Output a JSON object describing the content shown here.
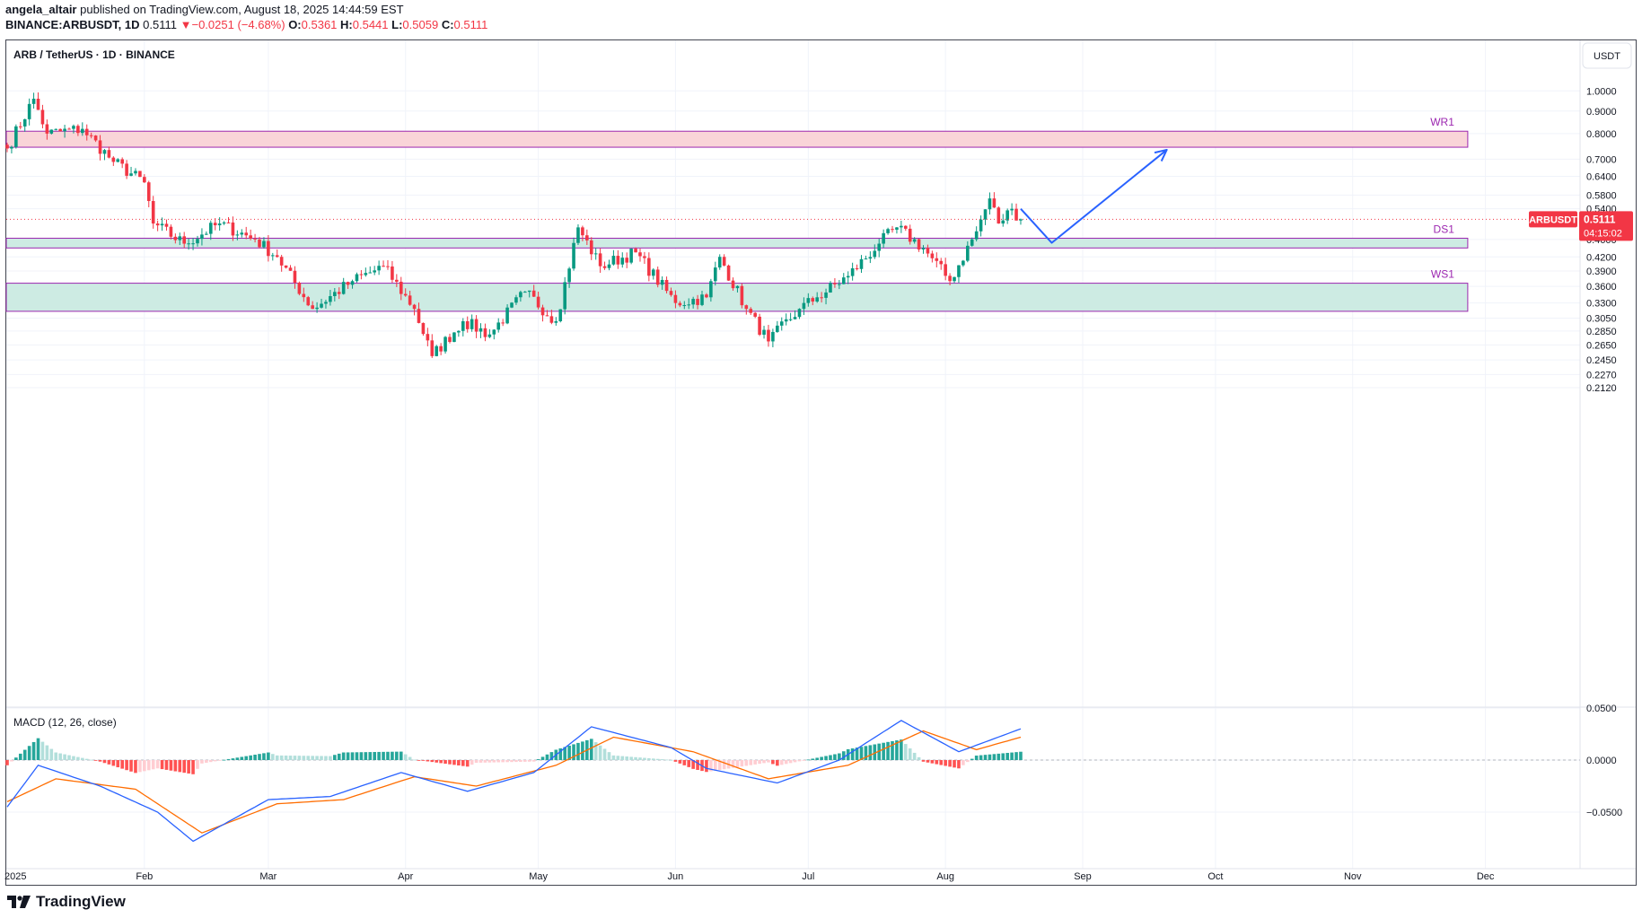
{
  "header": {
    "user": "angela_altair",
    "published_text": "published on TradingView.com, August 18, 2025 14:44:59 EST",
    "symbol": "BINANCE:ARBUSDT, 1D",
    "last": "0.5111",
    "change_arrow": "▼",
    "change": "−0.0251 (−4.68%)",
    "o_label": "O:",
    "o": "0.5361",
    "h_label": "H:",
    "h": "0.5441",
    "l_label": "L:",
    "l": "0.5059",
    "c_label": "C:",
    "c": "0.5111"
  },
  "chart_title": "ARB / TetherUS · 1D · BINANCE",
  "currency_button": "USDT",
  "price_tag": {
    "symbol": "ARBUSDT",
    "price": "0.5111",
    "countdown": "04:15:02"
  },
  "macd_label": "MACD (12, 26, close)",
  "brand": "TradingView",
  "colors": {
    "up": "#089981",
    "down": "#f23645",
    "resistance_fill": "#f9d4d8",
    "support_fill": "#cdebe3",
    "zone_border": "#9c27b0",
    "arrow": "#2962ff",
    "macd_line": "#2962ff",
    "signal_line": "#ff6d00"
  },
  "chart_data": [
    {
      "type": "candlestick",
      "title": "ARB / TetherUS · 1D · BINANCE",
      "y_scale": "log",
      "y_ticks": [
        "1.0000",
        "0.9000",
        "0.8000",
        "0.7000",
        "0.6400",
        "0.5800",
        "0.5400",
        "0.4600",
        "0.4200",
        "0.3900",
        "0.3600",
        "0.3300",
        "0.3050",
        "0.2850",
        "0.2650",
        "0.2450",
        "0.2270",
        "0.2120"
      ],
      "x_ticks": [
        "2025",
        "Feb",
        "Mar",
        "Apr",
        "May",
        "Jun",
        "Jul",
        "Aug",
        "Sep",
        "Oct",
        "Nov",
        "Dec"
      ],
      "price_anchors": [
        {
          "date": "2025-01-01",
          "close": 0.74
        },
        {
          "date": "2025-01-07",
          "close": 0.96
        },
        {
          "date": "2025-01-10",
          "close": 0.8
        },
        {
          "date": "2025-01-18",
          "close": 0.82
        },
        {
          "date": "2025-01-25",
          "close": 0.69
        },
        {
          "date": "2025-02-01",
          "close": 0.62
        },
        {
          "date": "2025-02-03",
          "close": 0.5
        },
        {
          "date": "2025-02-10",
          "close": 0.45
        },
        {
          "date": "2025-02-18",
          "close": 0.5
        },
        {
          "date": "2025-02-26",
          "close": 0.46
        },
        {
          "date": "2025-03-03",
          "close": 0.42
        },
        {
          "date": "2025-03-11",
          "close": 0.32
        },
        {
          "date": "2025-03-20",
          "close": 0.37
        },
        {
          "date": "2025-03-27",
          "close": 0.4
        },
        {
          "date": "2025-04-03",
          "close": 0.32
        },
        {
          "date": "2025-04-07",
          "close": 0.25
        },
        {
          "date": "2025-04-14",
          "close": 0.3
        },
        {
          "date": "2025-04-20",
          "close": 0.28
        },
        {
          "date": "2025-04-28",
          "close": 0.35
        },
        {
          "date": "2025-05-05",
          "close": 0.3
        },
        {
          "date": "2025-05-10",
          "close": 0.49
        },
        {
          "date": "2025-05-15",
          "close": 0.4
        },
        {
          "date": "2025-05-23",
          "close": 0.43
        },
        {
          "date": "2025-06-01",
          "close": 0.33
        },
        {
          "date": "2025-06-08",
          "close": 0.34
        },
        {
          "date": "2025-06-11",
          "close": 0.42
        },
        {
          "date": "2025-06-17",
          "close": 0.32
        },
        {
          "date": "2025-06-22",
          "close": 0.27
        },
        {
          "date": "2025-06-29",
          "close": 0.32
        },
        {
          "date": "2025-07-03",
          "close": 0.34
        },
        {
          "date": "2025-07-10",
          "close": 0.38
        },
        {
          "date": "2025-07-17",
          "close": 0.45
        },
        {
          "date": "2025-07-21",
          "close": 0.49
        },
        {
          "date": "2025-07-27",
          "close": 0.44
        },
        {
          "date": "2025-08-02",
          "close": 0.37
        },
        {
          "date": "2025-08-08",
          "close": 0.48
        },
        {
          "date": "2025-08-11",
          "close": 0.57
        },
        {
          "date": "2025-08-13",
          "close": 0.5
        },
        {
          "date": "2025-08-16",
          "close": 0.54
        },
        {
          "date": "2025-08-18",
          "close": 0.5111
        }
      ],
      "last_price": 0.5111,
      "zones": [
        {
          "label": "WR1",
          "kind": "resistance",
          "top": 0.81,
          "bottom": 0.745
        },
        {
          "label": "DS1",
          "kind": "support",
          "top": 0.463,
          "bottom": 0.44
        },
        {
          "label": "WS1",
          "kind": "support",
          "top": 0.366,
          "bottom": 0.316
        }
      ],
      "projection": [
        {
          "date": "2025-08-18",
          "price": 0.54
        },
        {
          "date": "2025-08-25",
          "price": 0.452
        },
        {
          "date": "2025-09-20",
          "price": 0.735
        }
      ]
    },
    {
      "type": "macd",
      "title": "MACD (12, 26, close)",
      "y_ticks": [
        "0.0500",
        "0.0000",
        "−0.0500"
      ],
      "ylim": [
        -0.06,
        0.05
      ],
      "macd_anchors": [
        {
          "date": "2025-01-01",
          "value": -0.045
        },
        {
          "date": "2025-01-08",
          "value": -0.005
        },
        {
          "date": "2025-01-22",
          "value": -0.025
        },
        {
          "date": "2025-02-04",
          "value": -0.05
        },
        {
          "date": "2025-02-12",
          "value": -0.078
        },
        {
          "date": "2025-03-01",
          "value": -0.038
        },
        {
          "date": "2025-03-15",
          "value": -0.035
        },
        {
          "date": "2025-03-31",
          "value": -0.012
        },
        {
          "date": "2025-04-15",
          "value": -0.03
        },
        {
          "date": "2025-04-30",
          "value": -0.012
        },
        {
          "date": "2025-05-13",
          "value": 0.032
        },
        {
          "date": "2025-05-31",
          "value": 0.012
        },
        {
          "date": "2025-06-08",
          "value": -0.008
        },
        {
          "date": "2025-06-24",
          "value": -0.022
        },
        {
          "date": "2025-07-08",
          "value": 0.0
        },
        {
          "date": "2025-07-22",
          "value": 0.038
        },
        {
          "date": "2025-08-04",
          "value": 0.008
        },
        {
          "date": "2025-08-18",
          "value": 0.03
        }
      ],
      "signal_anchors": [
        {
          "date": "2025-01-01",
          "value": -0.04
        },
        {
          "date": "2025-01-12",
          "value": -0.018
        },
        {
          "date": "2025-01-30",
          "value": -0.028
        },
        {
          "date": "2025-02-14",
          "value": -0.07
        },
        {
          "date": "2025-03-03",
          "value": -0.042
        },
        {
          "date": "2025-03-18",
          "value": -0.038
        },
        {
          "date": "2025-04-03",
          "value": -0.016
        },
        {
          "date": "2025-04-17",
          "value": -0.025
        },
        {
          "date": "2025-05-05",
          "value": -0.005
        },
        {
          "date": "2025-05-18",
          "value": 0.022
        },
        {
          "date": "2025-06-05",
          "value": 0.008
        },
        {
          "date": "2025-06-22",
          "value": -0.018
        },
        {
          "date": "2025-07-10",
          "value": -0.005
        },
        {
          "date": "2025-07-27",
          "value": 0.028
        },
        {
          "date": "2025-08-08",
          "value": 0.01
        },
        {
          "date": "2025-08-18",
          "value": 0.022
        }
      ]
    }
  ]
}
